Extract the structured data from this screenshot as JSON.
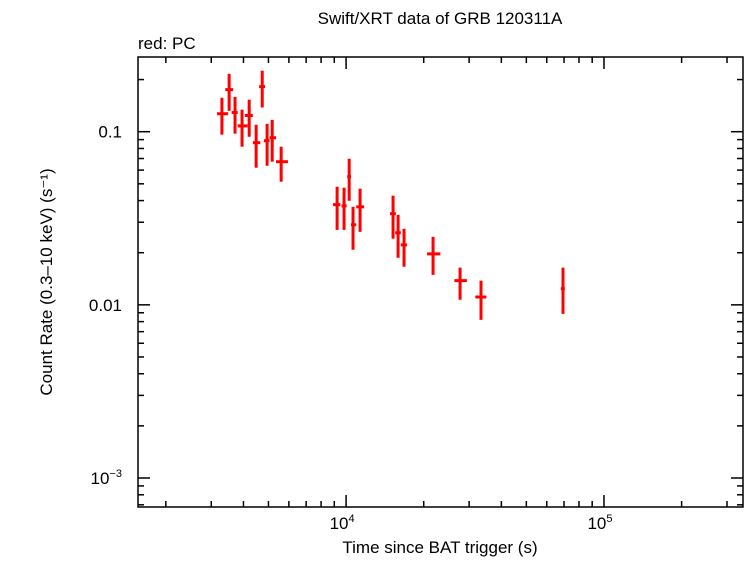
{
  "chart_data": {
    "type": "scatter",
    "title": "Swift/XRT data of GRB 120311A",
    "subtitle": "red: PC",
    "xlabel": "Time since BAT trigger (s)",
    "ylabel": "Count Rate (0.3–10 keV) (s⁻¹)",
    "xscale": "log",
    "yscale": "log",
    "xlim": [
      1560,
      346000
    ],
    "ylim": [
      0.00068,
      0.27
    ],
    "grid": false,
    "x_tick_labels": [
      {
        "value": 10000,
        "base": "10",
        "exp": "4"
      },
      {
        "value": 100000,
        "base": "10",
        "exp": "5"
      }
    ],
    "y_tick_labels": [
      {
        "value": 0.1,
        "text": "0.1"
      },
      {
        "value": 0.01,
        "text": "0.01"
      },
      {
        "value": 0.001,
        "base": "10",
        "exp": "−3"
      }
    ],
    "series": [
      {
        "color": "#ff0000",
        "points": [
          {
            "x": 3300,
            "xlo": 3160,
            "xhi": 3490,
            "y": 0.127,
            "ylo": 0.0961,
            "yhi": 0.157
          },
          {
            "x": 3520,
            "xlo": 3400,
            "xhi": 3650,
            "y": 0.175,
            "ylo": 0.132,
            "yhi": 0.216
          },
          {
            "x": 3710,
            "xlo": 3600,
            "xhi": 3800,
            "y": 0.129,
            "ylo": 0.0974,
            "yhi": 0.159
          },
          {
            "x": 3950,
            "xlo": 3800,
            "xhi": 4150,
            "y": 0.108,
            "ylo": 0.0819,
            "yhi": 0.134
          },
          {
            "x": 4210,
            "xlo": 4050,
            "xhi": 4350,
            "y": 0.124,
            "ylo": 0.0935,
            "yhi": 0.153
          },
          {
            "x": 4480,
            "xlo": 4350,
            "xhi": 4650,
            "y": 0.0864,
            "ylo": 0.0619,
            "yhi": 0.1096
          },
          {
            "x": 4730,
            "xlo": 4600,
            "xhi": 4850,
            "y": 0.182,
            "ylo": 0.138,
            "yhi": 0.225
          },
          {
            "x": 4940,
            "xlo": 4800,
            "xhi": 5050,
            "y": 0.0887,
            "ylo": 0.0636,
            "yhi": 0.111
          },
          {
            "x": 5170,
            "xlo": 5050,
            "xhi": 5350,
            "y": 0.0923,
            "ylo": 0.0671,
            "yhi": 0.117
          },
          {
            "x": 5600,
            "xlo": 5350,
            "xhi": 5950,
            "y": 0.0671,
            "ylo": 0.0514,
            "yhi": 0.0819
          },
          {
            "x": 9230,
            "xlo": 8900,
            "xhi": 9500,
            "y": 0.0379,
            "ylo": 0.0271,
            "yhi": 0.0481
          },
          {
            "x": 9820,
            "xlo": 9600,
            "xhi": 10050,
            "y": 0.0373,
            "ylo": 0.0271,
            "yhi": 0.0475
          },
          {
            "x": 10280,
            "xlo": 10100,
            "xhi": 10450,
            "y": 0.055,
            "ylo": 0.0399,
            "yhi": 0.0698
          },
          {
            "x": 10640,
            "xlo": 10450,
            "xhi": 10950,
            "y": 0.029,
            "ylo": 0.0208,
            "yhi": 0.0368
          },
          {
            "x": 11330,
            "xlo": 10950,
            "xhi": 11750,
            "y": 0.0368,
            "ylo": 0.0264,
            "yhi": 0.0469
          },
          {
            "x": 15210,
            "xlo": 14800,
            "xhi": 15600,
            "y": 0.0336,
            "ylo": 0.0241,
            "yhi": 0.0427
          },
          {
            "x": 15910,
            "xlo": 15500,
            "xhi": 16300,
            "y": 0.0261,
            "ylo": 0.0187,
            "yhi": 0.0331
          },
          {
            "x": 16780,
            "xlo": 16300,
            "xhi": 17250,
            "y": 0.0222,
            "ylo": 0.0166,
            "yhi": 0.0275
          },
          {
            "x": 21740,
            "xlo": 20600,
            "xhi": 23200,
            "y": 0.0197,
            "ylo": 0.0149,
            "yhi": 0.0247
          },
          {
            "x": 27670,
            "xlo": 26300,
            "xhi": 29400,
            "y": 0.0138,
            "ylo": 0.0107,
            "yhi": 0.0164
          },
          {
            "x": 33360,
            "xlo": 31700,
            "xhi": 35000,
            "y": 0.0111,
            "ylo": 0.00819,
            "yhi": 0.0138
          },
          {
            "x": 69350,
            "xlo": 68000,
            "xhi": 70500,
            "y": 0.0124,
            "ylo": 0.00887,
            "yhi": 0.0164
          }
        ]
      }
    ]
  }
}
